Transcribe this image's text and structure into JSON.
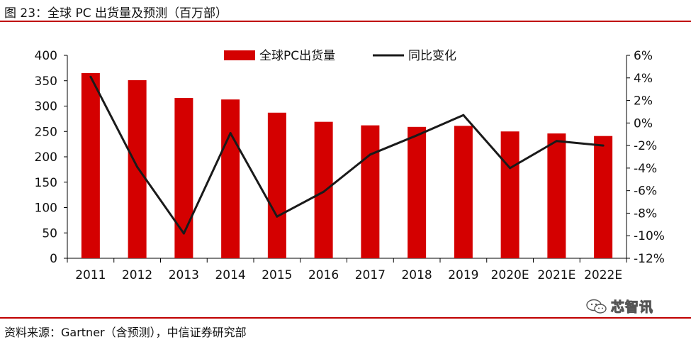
{
  "figure_title": "图 23：全球 PC 出货量及预测（百万部）",
  "source": "资料来源：Gartner（含预测），中信证券研究部",
  "watermark": "芯智讯",
  "colors": {
    "bar": "#d40000",
    "line": "#1a1a1a",
    "rule": "#c00000"
  },
  "chart_data": {
    "type": "bar",
    "title": "",
    "categories": [
      "2011",
      "2012",
      "2013",
      "2014",
      "2015",
      "2016",
      "2017",
      "2018",
      "2019",
      "2020E",
      "2021E",
      "2022E"
    ],
    "series": [
      {
        "name": "全球PC出货量",
        "type": "bar",
        "axis": "left",
        "values": [
          365,
          351,
          316,
          313,
          287,
          269,
          262,
          259,
          261,
          250,
          246,
          241
        ]
      },
      {
        "name": "同比变化",
        "type": "line",
        "axis": "right",
        "values": [
          4.1,
          -3.9,
          -9.8,
          -0.9,
          -8.3,
          -6.1,
          -2.8,
          -1.1,
          0.7,
          -4.0,
          -1.6,
          -2.0
        ]
      }
    ],
    "left_axis": {
      "ylim": [
        0,
        400
      ],
      "ticks": [
        "0",
        "50",
        "100",
        "150",
        "200",
        "250",
        "300",
        "350",
        "400"
      ]
    },
    "right_axis": {
      "ylim": [
        -12,
        6
      ],
      "ticks": [
        "-12%",
        "-10%",
        "-8%",
        "-6%",
        "-4%",
        "-2%",
        "0%",
        "2%",
        "4%",
        "6%"
      ]
    },
    "legend_position": "top-center",
    "grid": false
  }
}
